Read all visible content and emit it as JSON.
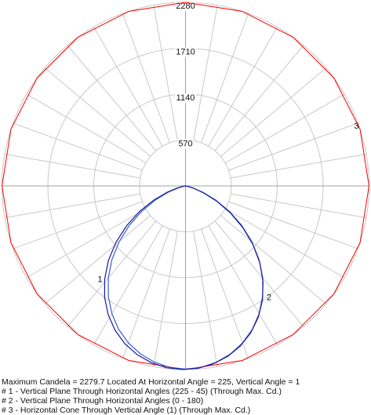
{
  "chart_data": {
    "type": "polar",
    "radial_max": 2280,
    "ring_labels": [
      "570",
      "1140",
      "1710",
      "2280"
    ],
    "ring_values": [
      570,
      1140,
      1710,
      2280
    ],
    "spokes": 36,
    "grid": true,
    "colors": {
      "grid": "#c8c8c8",
      "axis": "#a0a0a0",
      "curve1": "#1a1a9a",
      "curve2": "#3a5fd0",
      "curve3": "#ff0000"
    },
    "series": [
      {
        "label": "1",
        "description": "Vertical Plane Through Horizontal Angles (225 - 45) (Through Max. Cd.)",
        "angles_deg": [
          0,
          5,
          10,
          15,
          20,
          25,
          30,
          35,
          40,
          45,
          50,
          55,
          60,
          65,
          70,
          75,
          80,
          85,
          90
        ],
        "candela": [
          2280,
          2270,
          2235,
          2180,
          2100,
          1995,
          1865,
          1710,
          1530,
          1330,
          1110,
          880,
          650,
          430,
          240,
          100,
          25,
          3,
          0
        ]
      },
      {
        "label": "2",
        "description": "Vertical Plane Through Horizontal Angles (0 - 180)",
        "angles_deg": [
          0,
          5,
          10,
          15,
          20,
          25,
          30,
          35,
          40,
          45,
          50,
          55,
          60,
          65,
          70,
          75,
          80,
          85,
          90
        ],
        "candela": [
          2275,
          2262,
          2222,
          2160,
          2075,
          1965,
          1830,
          1672,
          1492,
          1292,
          1075,
          850,
          625,
          412,
          228,
          95,
          22,
          2,
          0
        ]
      },
      {
        "label": "3",
        "description": "Horizontal Cone Through Vertical Angle (1) (Through Max. Cd.)",
        "candela_constant": 2279.7
      }
    ],
    "max_candela": "2279.7",
    "max_horizontal_angle": "225",
    "max_vertical_angle": "1"
  },
  "legend": {
    "line0": "Maximum Candela = 2279.7   Located At Horizontal Angle = 225, Vertical Angle = 1",
    "line1": "# 1 - Vertical Plane Through Horizontal Angles (225 - 45) (Through Max. Cd.)",
    "line2": "# 2 - Vertical Plane Through Horizontal Angles (0 - 180)",
    "line3": "# 3 - Horizontal Cone Through Vertical Angle (1) (Through Max. Cd.)"
  }
}
